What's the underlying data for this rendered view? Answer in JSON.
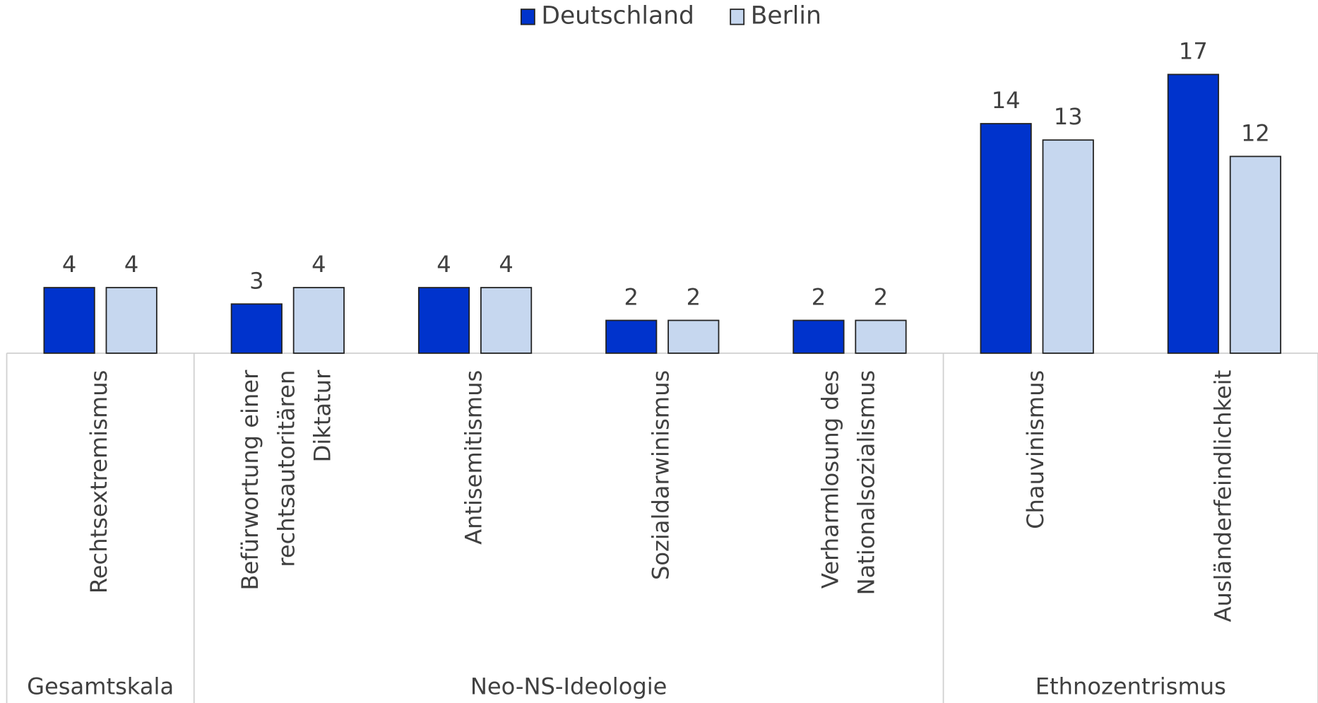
{
  "chart_data": {
    "type": "bar",
    "groups": [
      {
        "label": "Gesamtskala",
        "categories": [
          [
            "Rechtsextremismus"
          ]
        ]
      },
      {
        "label": "Neo-NS-Ideologie",
        "categories": [
          [
            "Befürwortung einer",
            "rechtsautoritären",
            "Diktatur"
          ],
          [
            "Antisemitismus"
          ],
          [
            "Sozialdarwinismus"
          ],
          [
            "Verharmlosung des",
            "Nationalsozialismus"
          ]
        ]
      },
      {
        "label": "Ethnozentrismus",
        "categories": [
          [
            "Chauvinismus"
          ],
          [
            "Ausländerfeindlichkeit"
          ]
        ]
      }
    ],
    "series": [
      {
        "name": "Deutschland",
        "color": "#0033cc",
        "values": [
          4,
          3,
          4,
          2,
          2,
          14,
          17
        ]
      },
      {
        "name": "Berlin",
        "color": "#c6d7ef",
        "values": [
          4,
          4,
          4,
          2,
          2,
          13,
          12
        ]
      }
    ],
    "legend": "top"
  }
}
